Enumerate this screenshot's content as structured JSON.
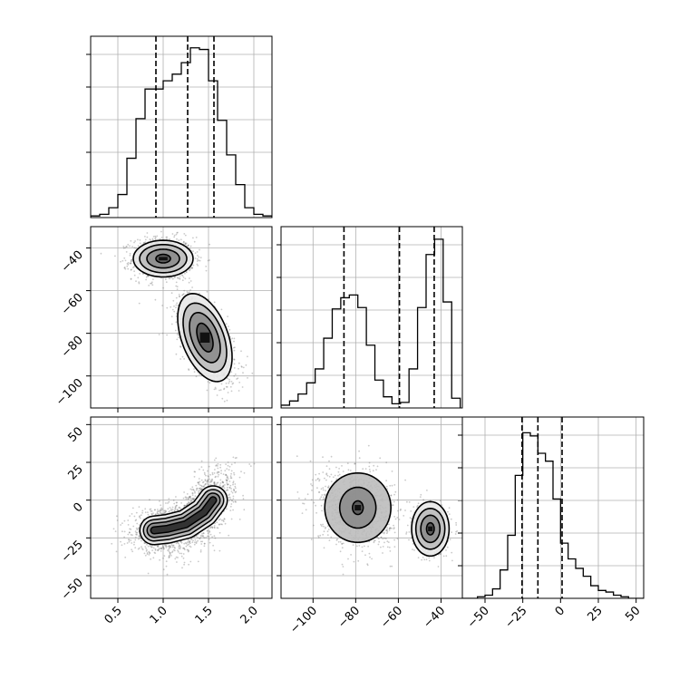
{
  "chart_data": {
    "type": "corner",
    "parameters": 3,
    "grid": true,
    "colors": {
      "line": "#000000",
      "grid": "#b0b0b0",
      "scatter": "#666666"
    },
    "axes": {
      "p0": {
        "range": [
          0.2,
          2.2
        ],
        "ticks": [
          0.5,
          1.0,
          1.5,
          2.0
        ],
        "tick_labels": [
          "0.5",
          "1.0",
          "1.5",
          "2.0"
        ]
      },
      "p1": {
        "range": [
          -115,
          -30
        ],
        "ticks": [
          -100,
          -80,
          -60,
          -40
        ],
        "tick_labels": [
          "−100",
          "−80",
          "−60",
          "−40"
        ]
      },
      "p2": {
        "range": [
          -65,
          55
        ],
        "ticks": [
          -50,
          -25,
          0,
          25,
          50
        ],
        "tick_labels": [
          "−50",
          "−25",
          "0",
          "25",
          "50"
        ]
      }
    },
    "histograms": [
      {
        "param": "p0",
        "bin_edges": [
          0.2,
          0.3,
          0.4,
          0.5,
          0.6,
          0.7,
          0.8,
          0.9,
          1.0,
          1.1,
          1.2,
          1.3,
          1.4,
          1.5,
          1.6,
          1.7,
          1.8,
          1.9,
          2.0,
          2.1,
          2.2
        ],
        "counts": [
          1,
          2,
          6,
          14,
          36,
          60,
          78,
          78,
          83,
          87,
          94,
          103,
          102,
          83,
          59,
          38,
          20,
          6,
          2,
          1
        ],
        "ylim": [
          0,
          110
        ],
        "quantiles": [
          0.92,
          1.27,
          1.56
        ]
      },
      {
        "param": "p1",
        "bin_edges": [
          -115,
          -111,
          -107,
          -103,
          -99,
          -95,
          -91,
          -87,
          -83,
          -79,
          -75,
          -71,
          -67,
          -63,
          -59,
          -55,
          -51,
          -47,
          -43,
          -39,
          -35,
          -31
        ],
        "counts": [
          2,
          5,
          10,
          18,
          28,
          50,
          71,
          79,
          81,
          72,
          45,
          20,
          8,
          3,
          4,
          28,
          72,
          110,
          121,
          76,
          7
        ],
        "ylim": [
          0,
          130
        ],
        "quantiles": [
          -85.5,
          -59.5,
          -43.2
        ]
      },
      {
        "param": "p2",
        "bin_edges": [
          -65,
          -60,
          -55,
          -50,
          -45,
          -40,
          -35,
          -30,
          -25,
          -20,
          -15,
          -10,
          -5,
          0,
          5,
          10,
          15,
          20,
          25,
          30,
          35,
          40,
          45,
          50,
          55
        ],
        "counts": [
          0,
          0,
          1,
          2,
          6,
          18,
          40,
          78,
          105,
          103,
          92,
          87,
          63,
          35,
          25,
          19,
          14,
          8,
          5,
          4,
          2,
          1,
          0,
          0
        ],
        "ylim": [
          0,
          115
        ],
        "quantiles": [
          -25.5,
          -15.0,
          1.0
        ]
      }
    ],
    "scatter_2d": [
      {
        "x_param": "p0",
        "y_param": "p1",
        "clusters": [
          {
            "center": [
              1.0,
              -45
            ],
            "spread": [
              0.17,
              5.0
            ],
            "correlation": 0.0,
            "points": 1100
          },
          {
            "center": [
              1.47,
              -83
            ],
            "spread": [
              0.16,
              10.0
            ],
            "correlation": -0.6,
            "points": 1100
          }
        ],
        "contours": [
          {
            "center": [
              1.0,
              -45
            ],
            "rings": [
              {
                "rx": 0.08,
                "ry": 2.0
              },
              {
                "rx": 0.18,
                "ry": 4.4
              },
              {
                "rx": 0.26,
                "ry": 6.6
              },
              {
                "rx": 0.33,
                "ry": 8.6
              }
            ],
            "angle_deg": 0
          },
          {
            "center": [
              1.46,
              -82
            ],
            "rings": [
              {
                "rx": 0.09,
                "ry": 6.0
              },
              {
                "rx": 0.17,
                "ry": 10.5
              },
              {
                "rx": 0.24,
                "ry": 14.5
              },
              {
                "rx": 0.3,
                "ry": 18.5
              }
            ],
            "angle_deg": 0,
            "tilt": -0.55
          }
        ]
      },
      {
        "x_param": "p0",
        "y_param": "p2",
        "clusters": [
          {
            "center": [
              1.0,
              -20
            ],
            "spread": [
              0.17,
              7.0
            ],
            "correlation": 0.1,
            "points": 1100
          },
          {
            "center": [
              1.45,
              -5
            ],
            "spread": [
              0.17,
              13.0
            ],
            "correlation": 0.6,
            "points": 1100
          }
        ],
        "contour_band": {
          "inner_path": [
            [
              0.9,
              -20
            ],
            [
              1.05,
              -19
            ],
            [
              1.25,
              -16
            ],
            [
              1.45,
              -8
            ],
            [
              1.55,
              0
            ]
          ],
          "widths": [
            6,
            14,
            22,
            30
          ]
        }
      },
      {
        "x_param": "p1",
        "y_param": "p2",
        "clusters": [
          {
            "center": [
              -80,
              -5
            ],
            "spread": [
              8.5,
              13.0
            ],
            "correlation": -0.15,
            "points": 1100
          },
          {
            "center": [
              -45,
              -20
            ],
            "spread": [
              3.8,
              7.0
            ],
            "correlation": 0.0,
            "points": 1100
          }
        ],
        "contours": [
          {
            "center": [
              -79,
              -5
            ],
            "rings": [
              {
                "rx": 2.5,
                "ry": 4.5
              },
              {
                "rx": 8.5,
                "ry": 13.5
              },
              {
                "rx": 15.5,
                "ry": 23.0
              }
            ],
            "angle_deg": 0
          },
          {
            "center": [
              -45,
              -19
            ],
            "rings": [
              {
                "rx": 1.8,
                "ry": 4.0
              },
              {
                "rx": 4.5,
                "ry": 9.0
              },
              {
                "rx": 6.8,
                "ry": 13.5
              },
              {
                "rx": 8.8,
                "ry": 18.0
              }
            ],
            "angle_deg": 0
          }
        ]
      }
    ]
  }
}
